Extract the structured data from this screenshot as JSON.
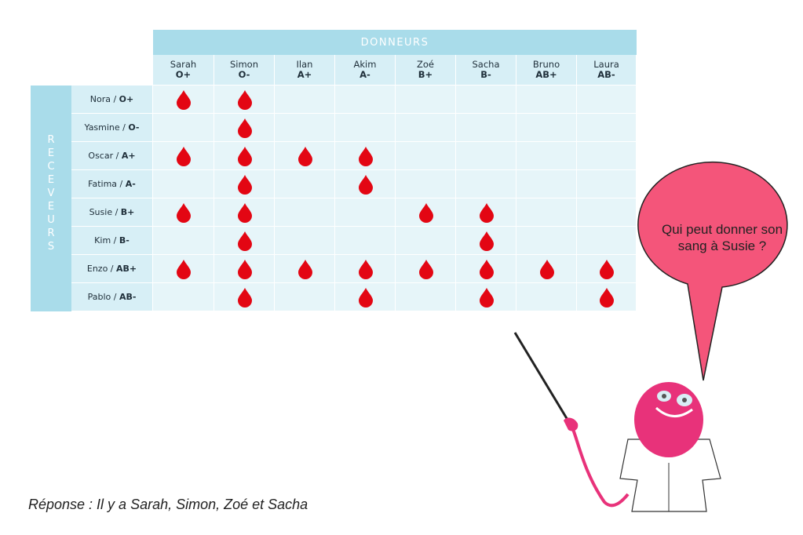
{
  "table": {
    "donors_title": "DONNEURS",
    "receivers_title": "RECEVEURS",
    "donors": [
      {
        "name": "Sarah",
        "group": "O+"
      },
      {
        "name": "Simon",
        "group": "O-"
      },
      {
        "name": "Ilan",
        "group": "A+"
      },
      {
        "name": "Akim",
        "group": "A-"
      },
      {
        "name": "Zoé",
        "group": "B+"
      },
      {
        "name": "Sacha",
        "group": "B-"
      },
      {
        "name": "Bruno",
        "group": "AB+"
      },
      {
        "name": "Laura",
        "group": "AB-"
      }
    ],
    "receivers": [
      {
        "name": "Nora",
        "group": "O+",
        "compatible": [
          1,
          1,
          0,
          0,
          0,
          0,
          0,
          0
        ]
      },
      {
        "name": "Yasmine",
        "group": "O-",
        "compatible": [
          0,
          1,
          0,
          0,
          0,
          0,
          0,
          0
        ]
      },
      {
        "name": "Oscar",
        "group": "A+",
        "compatible": [
          1,
          1,
          1,
          1,
          0,
          0,
          0,
          0
        ]
      },
      {
        "name": "Fatima",
        "group": "A-",
        "compatible": [
          0,
          1,
          0,
          1,
          0,
          0,
          0,
          0
        ]
      },
      {
        "name": "Susie",
        "group": "B+",
        "compatible": [
          1,
          1,
          0,
          0,
          1,
          1,
          0,
          0
        ]
      },
      {
        "name": "Kim",
        "group": "B-",
        "compatible": [
          0,
          1,
          0,
          0,
          0,
          1,
          0,
          0
        ]
      },
      {
        "name": "Enzo",
        "group": "AB+",
        "compatible": [
          1,
          1,
          1,
          1,
          1,
          1,
          1,
          1
        ]
      },
      {
        "name": "Pablo",
        "group": "AB-",
        "compatible": [
          0,
          1,
          0,
          1,
          0,
          1,
          0,
          1
        ]
      }
    ],
    "drop_icon": "blood-drop-icon",
    "drop_color": "#e30613"
  },
  "bubble": {
    "text": "Qui peut donner son sang à Susie ?",
    "color": "#f4557a"
  },
  "answer": {
    "text": "Réponse : Il y a Sarah, Simon, Zoé et Sacha"
  },
  "mascot": {
    "color": "#e8327a"
  }
}
